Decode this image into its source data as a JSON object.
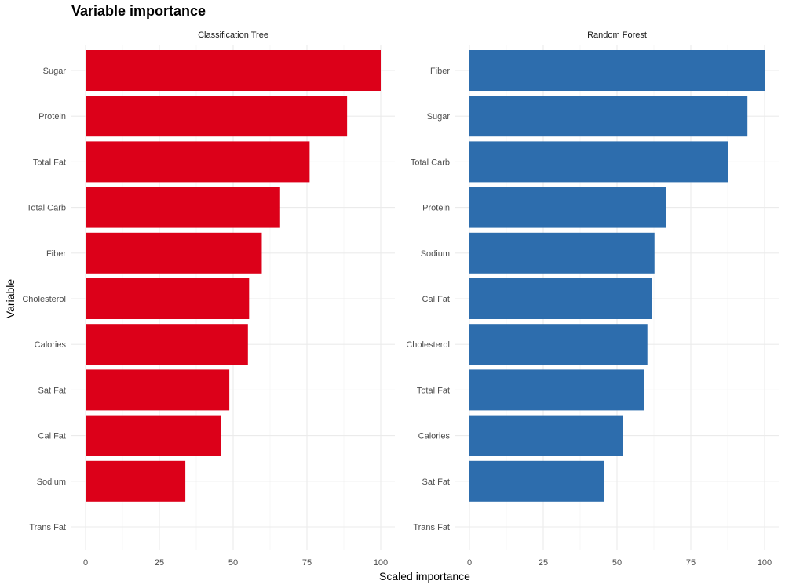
{
  "chart_data": {
    "type": "bar",
    "orientation": "horizontal",
    "title": "Variable importance",
    "xlabel": "Scaled importance",
    "ylabel": "Variable",
    "xlim": [
      0,
      100
    ],
    "x_ticks": [
      "0",
      "25",
      "50",
      "75",
      "100"
    ],
    "grid": true,
    "legend": "none",
    "panels": [
      {
        "name": "Classification Tree",
        "color": "#DC0019",
        "categories": [
          "Sugar",
          "Protein",
          "Total Fat",
          "Total Carb",
          "Fiber",
          "Cholesterol",
          "Calories",
          "Sat Fat",
          "Cal Fat",
          "Sodium",
          "Trans Fat"
        ],
        "values": [
          100,
          88.6,
          75.9,
          65.9,
          59.7,
          55.4,
          55.0,
          48.7,
          46.0,
          33.8,
          0
        ]
      },
      {
        "name": "Random Forest",
        "color": "#2D6DAD",
        "categories": [
          "Fiber",
          "Sugar",
          "Total Carb",
          "Protein",
          "Sodium",
          "Cal Fat",
          "Cholesterol",
          "Total Fat",
          "Calories",
          "Sat Fat",
          "Trans Fat"
        ],
        "values": [
          100,
          94.2,
          87.7,
          66.6,
          62.7,
          61.7,
          60.3,
          59.2,
          52.1,
          45.7,
          0
        ]
      }
    ]
  }
}
